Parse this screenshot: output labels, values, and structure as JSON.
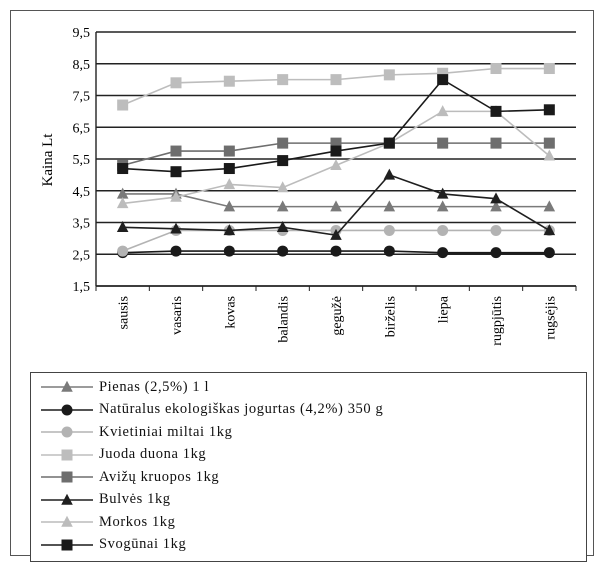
{
  "chart_data": {
    "type": "line",
    "ylabel": "Kaina Lt",
    "ylim": [
      1.5,
      9.5
    ],
    "yticks": [
      "9,5",
      "8,5",
      "7,5",
      "6,5",
      "5,5",
      "4,5",
      "3,5",
      "2,5",
      "1,5"
    ],
    "ytick_values": [
      9.5,
      8.5,
      7.5,
      6.5,
      5.5,
      4.5,
      3.5,
      2.5,
      1.5
    ],
    "grid": true,
    "legend_position": "bottom",
    "categories": [
      "sausis",
      "vasaris",
      "kovas",
      "balandis",
      "gegužė",
      "birželis",
      "liepa",
      "rugpjūtis",
      "rugsėjis"
    ],
    "series": [
      {
        "name": "Pienas (2,5%) 1 l",
        "color": "#7a7a7a",
        "marker": "triangle",
        "values": [
          4.4,
          4.4,
          4.0,
          4.0,
          4.0,
          4.0,
          4.0,
          4.0,
          4.0
        ]
      },
      {
        "name": "Natūralus ekologiškas jogurtas (4,2%) 350 g",
        "color": "#1a1a1a",
        "marker": "circle",
        "values": [
          2.55,
          2.6,
          2.6,
          2.6,
          2.6,
          2.6,
          2.55,
          2.55,
          2.55
        ]
      },
      {
        "name": "Kvietiniai miltai 1kg",
        "color": "#b3b3b3",
        "marker": "circle",
        "values": [
          2.6,
          3.25,
          3.25,
          3.25,
          3.25,
          3.25,
          3.25,
          3.25,
          3.25
        ]
      },
      {
        "name": "Juoda duona 1kg",
        "color": "#bdbdbd",
        "marker": "square",
        "values": [
          7.2,
          7.9,
          7.95,
          8.0,
          8.0,
          8.15,
          8.2,
          8.35,
          8.35
        ]
      },
      {
        "name": "Avižų kruopos 1kg",
        "color": "#6e6e6e",
        "marker": "square",
        "values": [
          5.3,
          5.75,
          5.75,
          6.0,
          6.0,
          6.0,
          6.0,
          6.0,
          6.0
        ]
      },
      {
        "name": "Bulvės 1kg",
        "color": "#1f1f1f",
        "marker": "triangle",
        "values": [
          3.35,
          3.3,
          3.25,
          3.35,
          3.1,
          5.0,
          4.4,
          4.25,
          3.25
        ]
      },
      {
        "name": "Morkos 1kg",
        "color": "#bcbcbc",
        "marker": "triangle",
        "values": [
          4.1,
          4.3,
          4.7,
          4.6,
          5.3,
          6.0,
          7.0,
          7.0,
          5.6
        ]
      },
      {
        "name": "Svogūnai 1kg",
        "color": "#1a1a1a",
        "marker": "square",
        "values": [
          5.2,
          5.1,
          5.2,
          5.45,
          5.75,
          6.0,
          8.0,
          7.0,
          7.05
        ]
      }
    ]
  }
}
